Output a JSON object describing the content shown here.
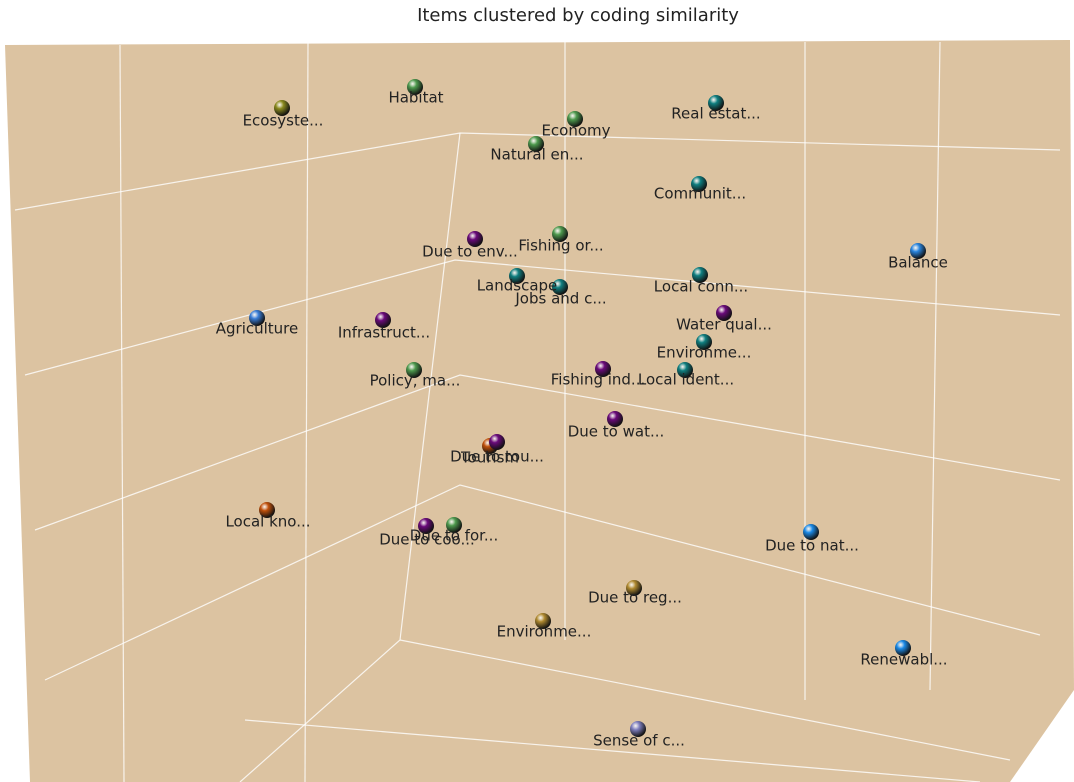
{
  "title": "Items clustered by coding similarity",
  "items": [
    {
      "label": "Ecosyste...",
      "color": "#8a8a1e"
    },
    {
      "label": "Habitat",
      "color": "#4e9a4e"
    },
    {
      "label": "Economy",
      "color": "#4e9a4e"
    },
    {
      "label": "Natural en...",
      "color": "#4e9a4e"
    },
    {
      "label": "Real estat...",
      "color": "#0f7f80"
    },
    {
      "label": "Communit...",
      "color": "#0f7f80"
    },
    {
      "label": "Balance",
      "color": "#2a86e0"
    },
    {
      "label": "Due to env...",
      "color": "#6a0a7a"
    },
    {
      "label": "Fishing or...",
      "color": "#4e9a4e"
    },
    {
      "label": "Landscape",
      "color": "#0f7f80"
    },
    {
      "label": "Jobs and c...",
      "color": "#0f7f80"
    },
    {
      "label": "Local conn...",
      "color": "#0f7f80"
    },
    {
      "label": "Water qual...",
      "color": "#6a0a7a"
    },
    {
      "label": "Agriculture",
      "color": "#3a7ed8"
    },
    {
      "label": "Infrastruct...",
      "color": "#6a0a7a"
    },
    {
      "label": "Environme...",
      "color": "#0f7f80"
    },
    {
      "label": "Policy, ma...",
      "color": "#4e9a4e"
    },
    {
      "label": "Fishing ind...",
      "color": "#6a0a7a"
    },
    {
      "label": "Local ident...",
      "color": "#0f7f80"
    },
    {
      "label": "Due to wat...",
      "color": "#6a0a7a"
    },
    {
      "label": "Tourism",
      "color": "#c0500a"
    },
    {
      "label": "Due to tou...",
      "color": "#6a0a7a"
    },
    {
      "label": "Local kno...",
      "color": "#c0500a"
    },
    {
      "label": "Due to for...",
      "color": "#4e9a4e"
    },
    {
      "label": "Due to coo...",
      "color": "#6a0a7a"
    },
    {
      "label": "Due to nat...",
      "color": "#1a8ae8"
    },
    {
      "label": "Due to reg...",
      "color": "#b08a30"
    },
    {
      "label": "Environme...",
      "color": "#b08a30"
    },
    {
      "label": "Renewabl...",
      "color": "#1a8ae8"
    },
    {
      "label": "Sense of c...",
      "color": "#8080c0"
    }
  ]
}
